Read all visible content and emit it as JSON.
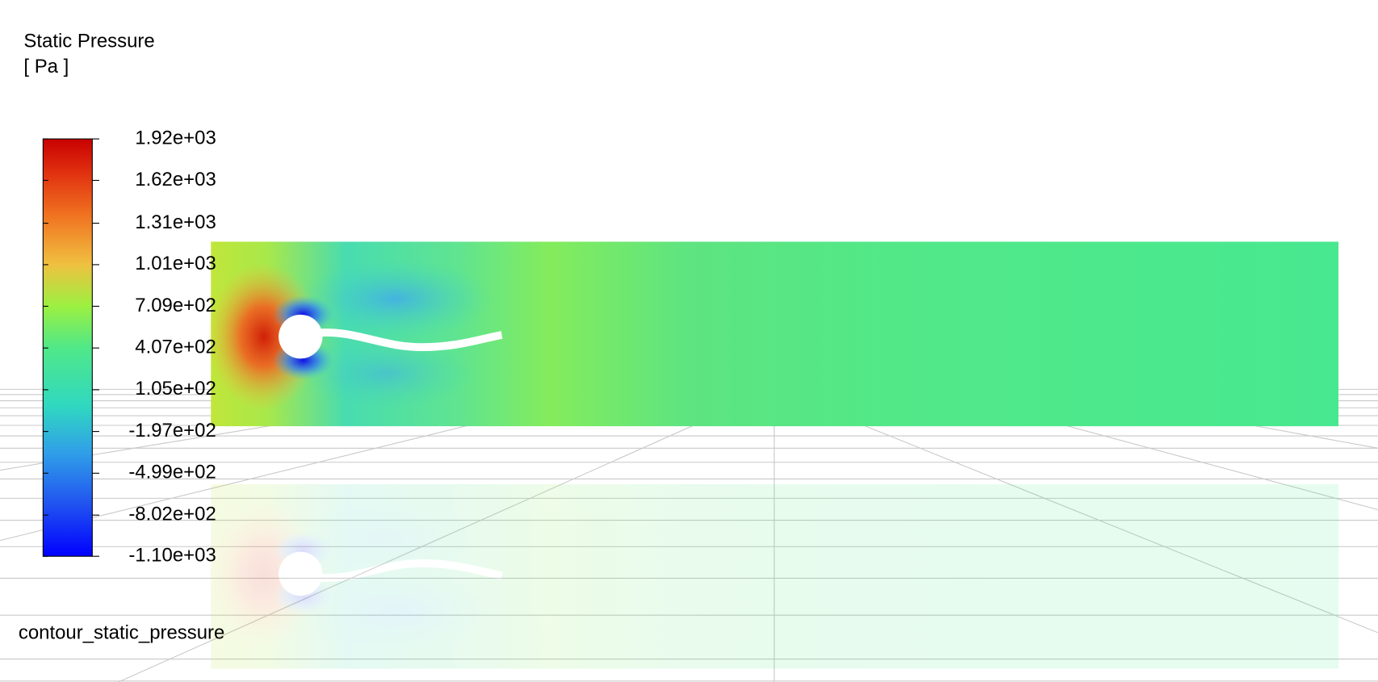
{
  "legend": {
    "title": "Static Pressure",
    "unit": "[ Pa ]",
    "range": [
      -1100,
      1920
    ],
    "ticks": [
      {
        "value": 1920,
        "label": "1.92e+03"
      },
      {
        "value": 1620,
        "label": "1.62e+03"
      },
      {
        "value": 1310,
        "label": "1.31e+03"
      },
      {
        "value": 1010,
        "label": "1.01e+03"
      },
      {
        "value": 709,
        "label": "7.09e+02"
      },
      {
        "value": 407,
        "label": "4.07e+02"
      },
      {
        "value": 105,
        "label": "1.05e+02"
      },
      {
        "value": -197,
        "label": "-1.97e+02"
      },
      {
        "value": -499,
        "label": "-4.99e+02"
      },
      {
        "value": -802,
        "label": "-8.02e+02"
      },
      {
        "value": -1100,
        "label": "-1.10e+03"
      }
    ]
  },
  "footer": {
    "label": "contour_static_pressure"
  }
}
